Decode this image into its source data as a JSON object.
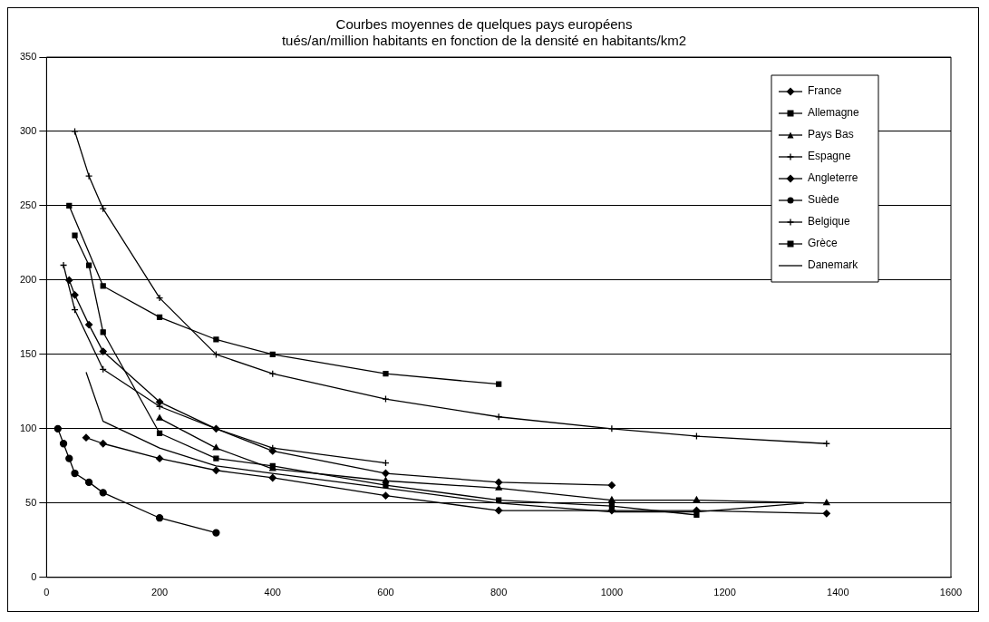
{
  "chart_data": {
    "type": "line",
    "title": "Courbes moyennes de quelques pays européens",
    "subtitle": "tués/an/million habitants en fonction de la densité en habitants/km2",
    "xlim": [
      0,
      1600
    ],
    "xticks": [
      0,
      200,
      400,
      600,
      800,
      1000,
      1200,
      1400,
      1600
    ],
    "ylim": [
      0,
      350
    ],
    "yticks": [
      0,
      50,
      100,
      150,
      200,
      250,
      300,
      350
    ],
    "grid": "y",
    "legend": "top right",
    "line_style": "solid",
    "series": [
      {
        "name": "France",
        "color": "#000000",
        "marker": "diamond",
        "x": [
          40,
          50,
          75,
          100,
          200,
          300,
          400,
          600,
          800,
          1000
        ],
        "values": [
          200,
          190,
          170,
          152,
          118,
          100,
          85,
          70,
          64,
          62
        ]
      },
      {
        "name": "Allemagne",
        "color": "#000000",
        "marker": "square",
        "x": [
          50,
          75,
          100,
          200,
          300,
          400,
          600,
          800,
          1000,
          1150
        ],
        "values": [
          230,
          210,
          165,
          97,
          80,
          75,
          62,
          52,
          48,
          42
        ]
      },
      {
        "name": "Pays Bas",
        "color": "#000000",
        "marker": "triangle",
        "x": [
          200,
          300,
          400,
          600,
          800,
          1000,
          1150,
          1380
        ],
        "values": [
          107,
          87,
          73,
          65,
          60,
          52,
          52,
          50
        ]
      },
      {
        "name": "Espagne",
        "color": "#000000",
        "marker": "cross",
        "x": [
          30,
          50,
          100,
          200,
          300,
          400,
          600
        ],
        "values": [
          210,
          180,
          140,
          115,
          100,
          87,
          77
        ]
      },
      {
        "name": "Angleterre",
        "color": "#000000",
        "marker": "diamond",
        "x": [
          70,
          100,
          200,
          300,
          400,
          600,
          800,
          1000,
          1150,
          1380
        ],
        "values": [
          94,
          90,
          80,
          72,
          67,
          55,
          45,
          45,
          45,
          43
        ]
      },
      {
        "name": "Suède",
        "color": "#000000",
        "marker": "circle",
        "x": [
          20,
          30,
          40,
          50,
          75,
          100,
          200,
          300
        ],
        "values": [
          100,
          90,
          80,
          70,
          64,
          57,
          40,
          30
        ]
      },
      {
        "name": "Belgique",
        "color": "#000000",
        "marker": "cross",
        "x": [
          50,
          75,
          100,
          200,
          300,
          400,
          600,
          800,
          1000,
          1150,
          1380
        ],
        "values": [
          300,
          270,
          248,
          188,
          150,
          137,
          120,
          108,
          100,
          95,
          90
        ]
      },
      {
        "name": "Grèce",
        "color": "#000000",
        "marker": "square",
        "x": [
          40,
          100,
          200,
          300,
          400,
          600,
          800
        ],
        "values": [
          250,
          196,
          175,
          160,
          150,
          137,
          130
        ]
      },
      {
        "name": "Danemark",
        "color": "#000000",
        "marker": "none",
        "x": [
          70,
          100,
          200,
          300,
          400,
          600,
          800,
          1000,
          1150,
          1340
        ],
        "values": [
          138,
          105,
          87,
          75,
          70,
          60,
          50,
          44,
          44,
          50
        ]
      }
    ]
  }
}
